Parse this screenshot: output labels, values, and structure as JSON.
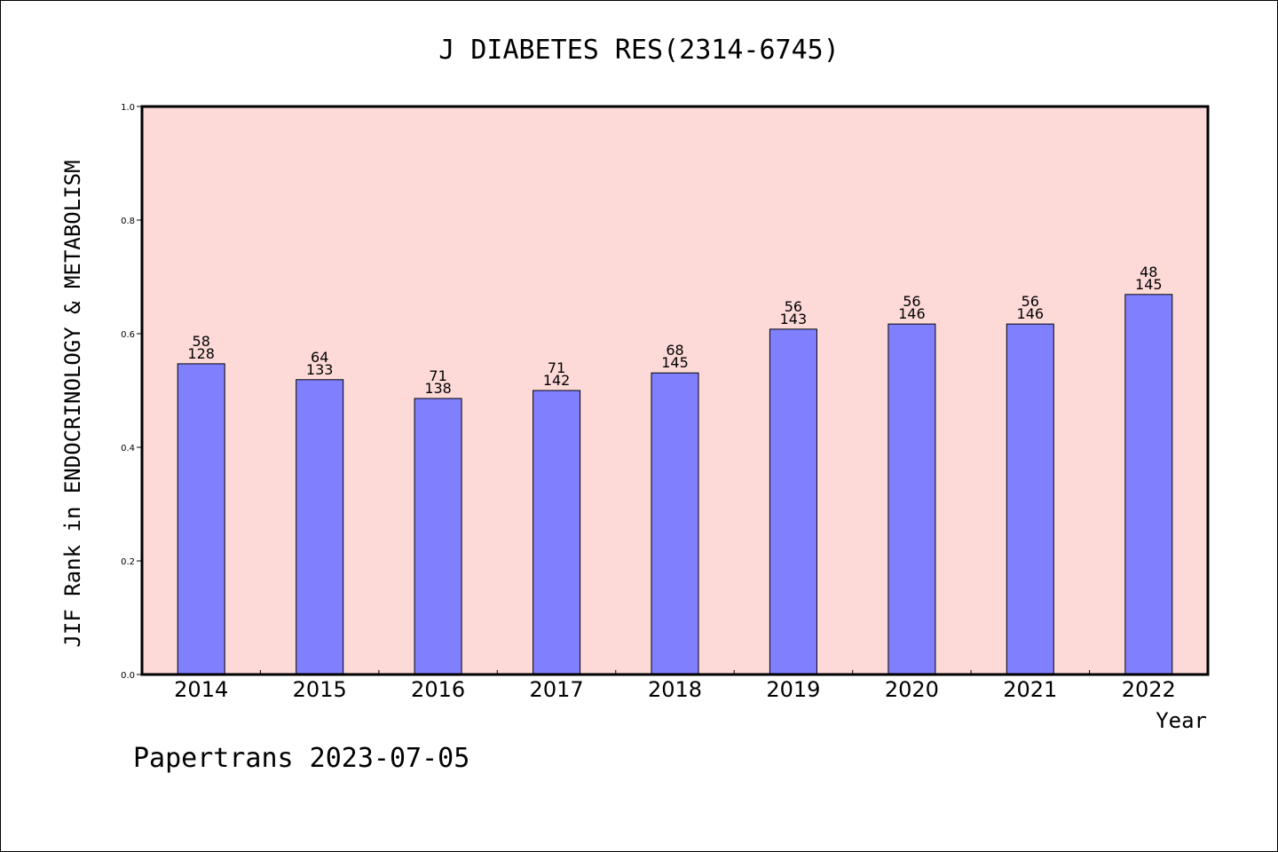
{
  "chart_data": {
    "type": "bar",
    "title": "J DIABETES RES(2314-6745)",
    "ylabel": "JIF Rank in ENDOCRINOLOGY & METABOLISM",
    "xlabel": "Year",
    "categories": [
      "2014",
      "2015",
      "2016",
      "2017",
      "2018",
      "2019",
      "2020",
      "2021",
      "2022"
    ],
    "values": [
      0.547,
      0.519,
      0.486,
      0.5,
      0.531,
      0.608,
      0.617,
      0.617,
      0.669
    ],
    "rank": [
      "58",
      "64",
      "71",
      "71",
      "68",
      "56",
      "56",
      "56",
      "48"
    ],
    "total": [
      "128",
      "133",
      "138",
      "142",
      "145",
      "143",
      "146",
      "146",
      "145"
    ],
    "ylim": [
      0,
      1.0
    ],
    "yticks": [
      "0.0",
      "0.2",
      "0.4",
      "0.6",
      "0.8",
      "1.0"
    ],
    "grid": false,
    "colors": {
      "bar_fill": "#8080ff",
      "plot_background": "#fddad8",
      "axis": "#000000"
    }
  },
  "footer": {
    "text": "Papertrans 2023-07-05"
  }
}
